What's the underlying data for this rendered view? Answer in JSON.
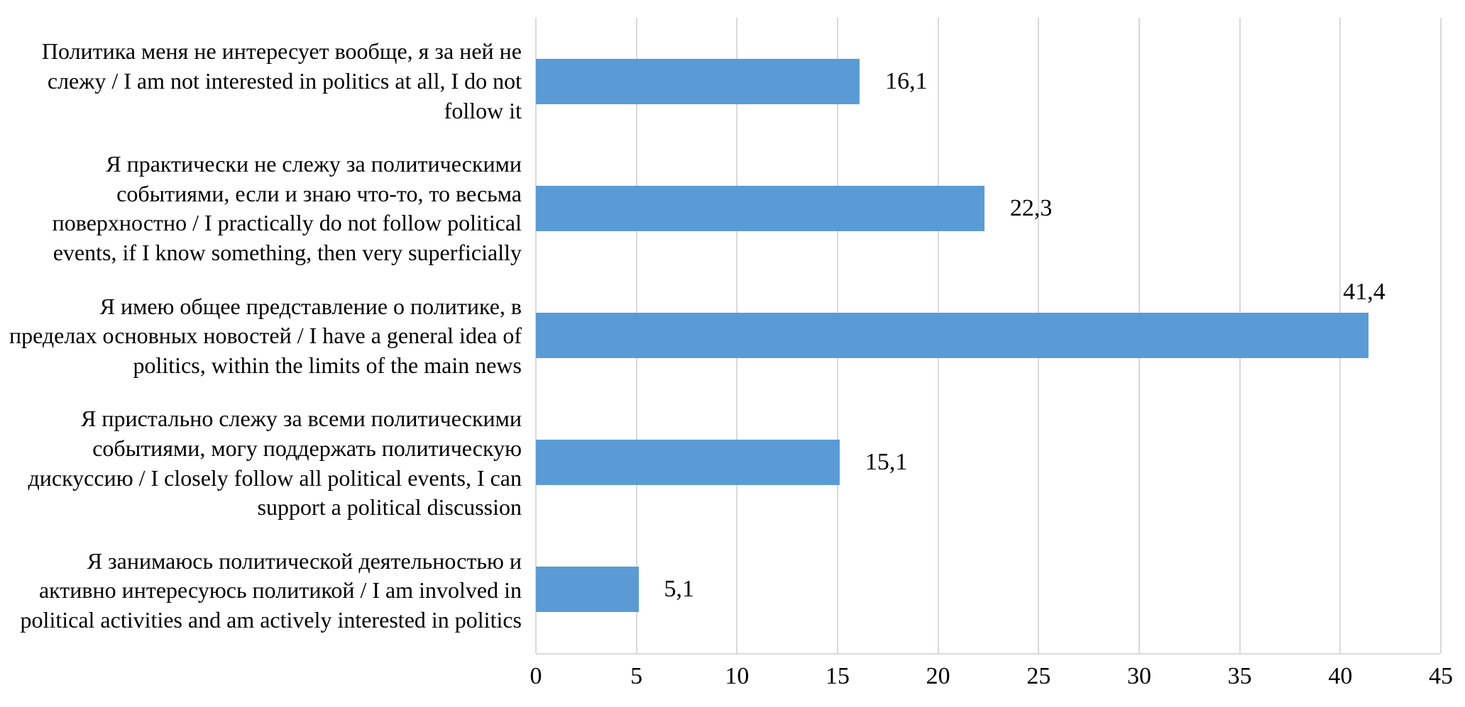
{
  "chart_data": {
    "type": "bar",
    "orientation": "horizontal",
    "title": "",
    "categories": [
      "Политика меня не интересует вообще, я за ней не слежу / I am not interested in politics at all, I do not follow it",
      "Я практически не слежу за политическими событиями, если и знаю что-то, то весьма поверхностно / I practically do not follow political events, if I know something, then very superficially",
      "Я имею общее представление о политике, в пределах основных новостей / I have a general idea of politics, within the limits of the main news",
      "Я пристально слежу за всеми политическими событиями, могу поддержать политическую дискуссию / I closely follow all political events, I can support a political discussion",
      "Я занимаюсь политической деятельностью и активно интересуюсь политикой / I am involved in political activities and am actively interested in politics"
    ],
    "values": [
      16.1,
      22.3,
      41.4,
      15.1,
      5.1
    ],
    "value_labels": [
      "16,1",
      "22,3",
      "41,4",
      "15,1",
      "5,1"
    ],
    "xlim": [
      0,
      45
    ],
    "xticks": [
      0,
      5,
      10,
      15,
      20,
      25,
      30,
      35,
      40,
      45
    ],
    "grid": true,
    "legend": false,
    "bar_color": "#5b9bd5",
    "gridline_color": "#d9d9d9"
  }
}
